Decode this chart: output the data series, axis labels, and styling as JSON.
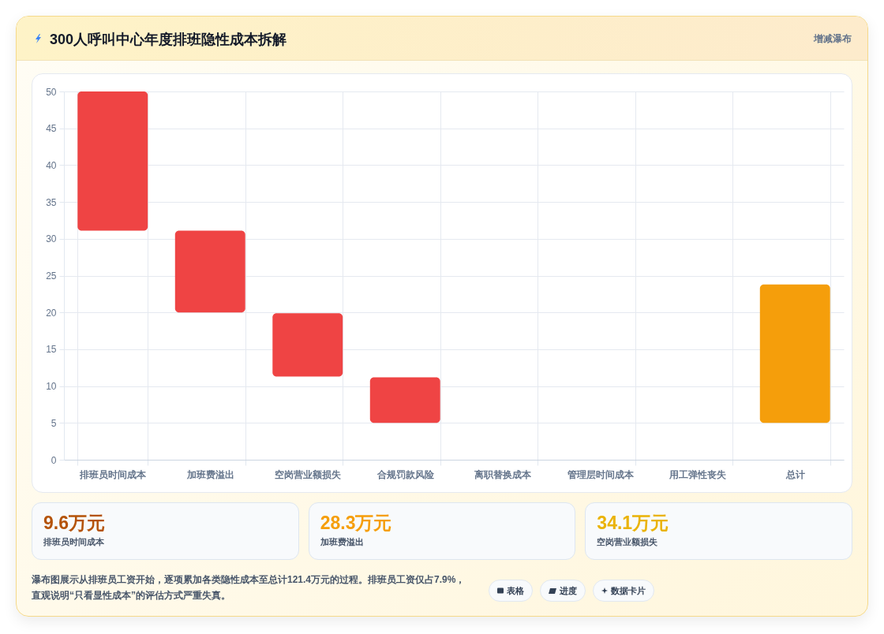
{
  "chart_data": [
    {
      "type": "bar",
      "title": "300人呼叫中心年度排班隐性成本拆解",
      "subtitle": "增减瀑布",
      "categories": [
        "排班员时间成本",
        "加班费溢出",
        "空岗营业额损失",
        "合规罚款风险",
        "离职替换成本",
        "管理层时间成本",
        "用工弹性丧失",
        "总计"
      ],
      "values": [
        18.9,
        11.1,
        8.6,
        6.2,
        null,
        null,
        null,
        18.8
      ],
      "base": [
        31.1,
        20.0,
        11.3,
        5.0,
        null,
        null,
        null,
        5.0
      ],
      "colors": [
        "#ef4444",
        "#ef4444",
        "#ef4444",
        "#ef4444",
        null,
        null,
        null,
        "#f59e0b"
      ],
      "ylim": [
        0,
        50
      ],
      "yticks": [
        0,
        5,
        10,
        15,
        20,
        25,
        30,
        35,
        40,
        45,
        50
      ],
      "grid": true,
      "annotations": [
        "瀑布图展示从排班员工资开始，逐项累加各类隐性成本至总计121.4万元的过程。排班员工资仅占7.9%，直观说明“只看显性成本”的评估方式严重失真。",
        "表格",
        "进度",
        "数据卡片"
      ]
    },
    {
      "type": "other",
      "annotations": [
        "9.6万元",
        "排班员时间成本",
        "28.3万元",
        "加班费溢出",
        "34.1万元",
        "空岗营业额损失"
      ]
    }
  ]
}
